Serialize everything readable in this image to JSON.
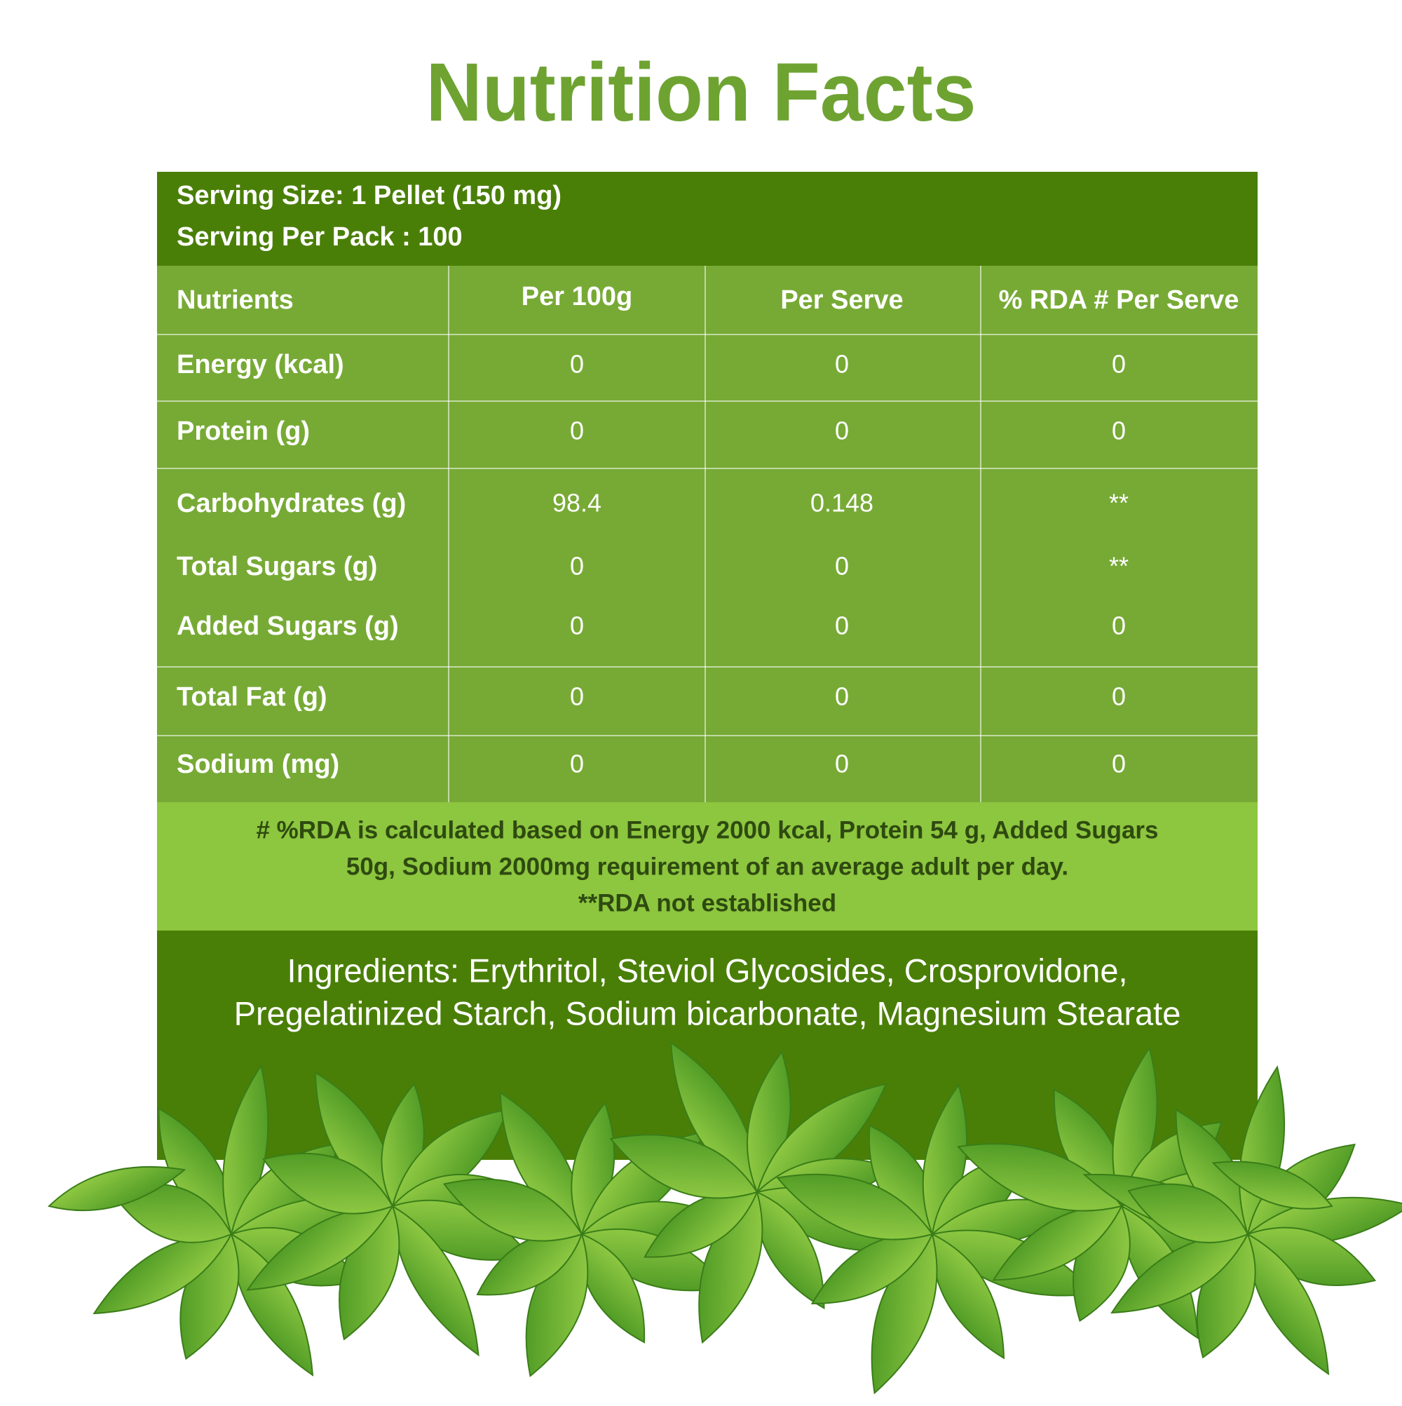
{
  "title": "Nutrition Facts",
  "serving": {
    "size": "Serving Size: 1 Pellet (150 mg)",
    "per_pack": "Serving Per Pack : 100"
  },
  "table": {
    "headers": [
      "Nutrients",
      "Per 100g",
      "Per Serve",
      "% RDA # Per Serve"
    ],
    "rows": [
      [
        "Energy (kcal)",
        "0",
        "0",
        "0"
      ],
      [
        "Protein (g)",
        "0",
        "0",
        "0"
      ],
      [
        "Carbohydrates (g)",
        "98.4",
        "0.148",
        "**"
      ],
      [
        "Total Sugars (g)",
        "0",
        "0",
        "**"
      ],
      [
        "Added Sugars (g)",
        "0",
        "0",
        "0"
      ],
      [
        "Total Fat (g)",
        "0",
        "0",
        "0"
      ],
      [
        "Sodium (mg)",
        "0",
        "0",
        "0"
      ]
    ]
  },
  "footnote": {
    "lines": [
      "# %RDA is calculated based on Energy 2000 kcal, Protein 54 g, Added Sugars",
      "50g, Sodium 2000mg requirement of an average adult per day.",
      "**RDA not established"
    ]
  },
  "ingredients": {
    "lines": [
      "Ingredients: Erythritol, Steviol Glycosides, Crosprovidone,",
      "Pregelatinized Starch, Sodium bicarbonate, Magnesium Stearate"
    ]
  }
}
